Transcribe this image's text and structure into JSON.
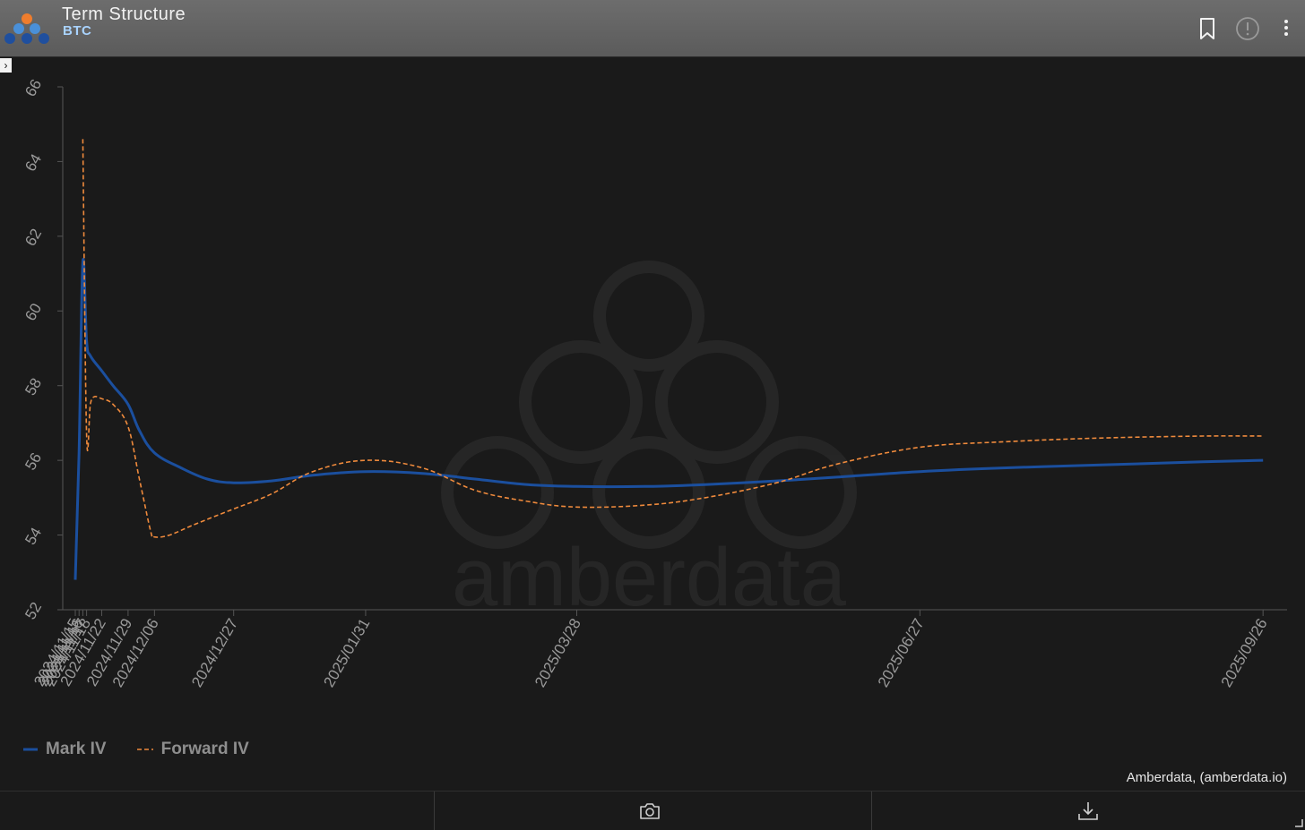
{
  "header": {
    "title": "Term Structure",
    "subtitle": "BTC"
  },
  "legend": {
    "mark_label": "Mark IV",
    "forward_label": "Forward IV"
  },
  "credit": "Amberdata, (amberdata.io)",
  "watermark": "amberdata",
  "icons": {
    "bookmark": "bookmark-icon",
    "info": "alert-circle-icon",
    "menu": "more-vertical-icon",
    "camera": "camera-icon",
    "download": "download-icon"
  },
  "colors": {
    "mark_iv": "#1b4f9e",
    "forward_iv": "#ef8a3c",
    "background": "#1a1a1a",
    "axis": "#555555",
    "tick_text": "#9a9a9a"
  },
  "chart_data": {
    "type": "line",
    "title": "",
    "xlabel": "",
    "ylabel": "",
    "ylim": [
      52,
      66
    ],
    "yticks": [
      52,
      54,
      56,
      58,
      60,
      62,
      64,
      66
    ],
    "xlim": [
      "2024-11-15",
      "2025-09-30"
    ],
    "xticks": [
      "2024/11/15",
      "2024/11/16",
      "2024/11/17",
      "2024/11/18",
      "2024/11/22",
      "2024/11/29",
      "2024/12/06",
      "2024/12/27",
      "2025/01/31",
      "2025/03/28",
      "2025/06/27",
      "2025/09/26"
    ],
    "legend_position": "bottom-left",
    "grid": false,
    "series": [
      {
        "name": "Mark IV",
        "style": "solid",
        "points": [
          [
            "2024-11-15",
            52.8
          ],
          [
            "2024-11-16",
            56.2
          ],
          [
            "2024-11-17",
            61.3
          ],
          [
            "2024-11-18",
            59.2
          ],
          [
            "2024-11-19",
            58.8
          ],
          [
            "2024-11-22",
            58.4
          ],
          [
            "2024-11-25",
            58.0
          ],
          [
            "2024-11-29",
            57.5
          ],
          [
            "2024-12-02",
            56.8
          ],
          [
            "2024-12-06",
            56.2
          ],
          [
            "2024-12-13",
            55.8
          ],
          [
            "2024-12-20",
            55.5
          ],
          [
            "2024-12-27",
            55.4
          ],
          [
            "2025-01-06",
            55.45
          ],
          [
            "2025-01-17",
            55.6
          ],
          [
            "2025-01-31",
            55.7
          ],
          [
            "2025-02-15",
            55.65
          ],
          [
            "2025-03-01",
            55.5
          ],
          [
            "2025-03-15",
            55.35
          ],
          [
            "2025-03-28",
            55.3
          ],
          [
            "2025-04-15",
            55.3
          ],
          [
            "2025-05-01",
            55.35
          ],
          [
            "2025-05-20",
            55.45
          ],
          [
            "2025-06-05",
            55.55
          ],
          [
            "2025-06-27",
            55.7
          ],
          [
            "2025-07-20",
            55.8
          ],
          [
            "2025-08-15",
            55.88
          ],
          [
            "2025-09-10",
            55.96
          ],
          [
            "2025-09-26",
            56.0
          ]
        ]
      },
      {
        "name": "Forward IV",
        "style": "dashed",
        "points": [
          [
            "2024-11-17",
            64.6
          ],
          [
            "2024-11-18",
            56.7
          ],
          [
            "2024-11-19",
            57.5
          ],
          [
            "2024-11-20",
            57.7
          ],
          [
            "2024-11-22",
            57.65
          ],
          [
            "2024-11-25",
            57.5
          ],
          [
            "2024-11-29",
            56.9
          ],
          [
            "2024-12-02",
            55.5
          ],
          [
            "2024-12-05",
            54.1
          ],
          [
            "2024-12-06",
            53.95
          ],
          [
            "2024-12-10",
            54.0
          ],
          [
            "2024-12-17",
            54.3
          ],
          [
            "2024-12-27",
            54.7
          ],
          [
            "2025-01-06",
            55.1
          ],
          [
            "2025-01-17",
            55.7
          ],
          [
            "2025-01-31",
            56.0
          ],
          [
            "2025-02-15",
            55.8
          ],
          [
            "2025-03-01",
            55.2
          ],
          [
            "2025-03-15",
            54.9
          ],
          [
            "2025-03-28",
            54.75
          ],
          [
            "2025-04-15",
            54.8
          ],
          [
            "2025-05-01",
            55.0
          ],
          [
            "2025-05-20",
            55.4
          ],
          [
            "2025-06-05",
            55.9
          ],
          [
            "2025-06-27",
            56.35
          ],
          [
            "2025-07-20",
            56.5
          ],
          [
            "2025-08-15",
            56.6
          ],
          [
            "2025-09-10",
            56.65
          ],
          [
            "2025-09-26",
            56.65
          ]
        ]
      }
    ]
  }
}
